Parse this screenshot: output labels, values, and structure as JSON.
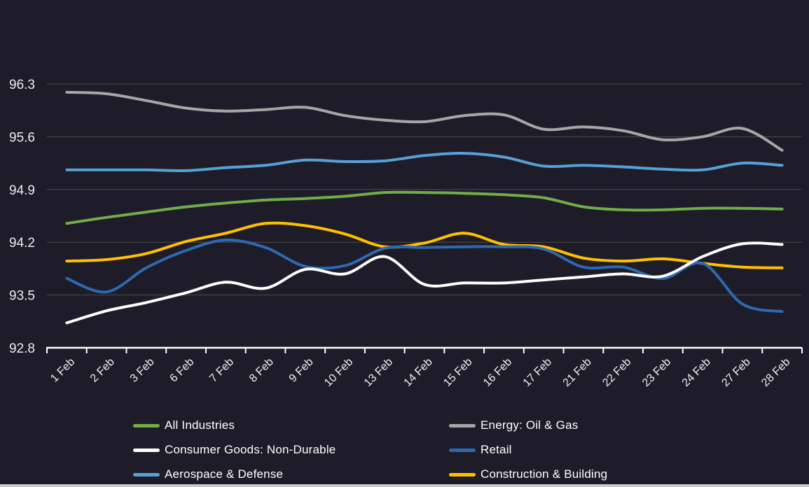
{
  "chart_data": {
    "type": "line",
    "title": "",
    "xlabel": "",
    "ylabel": "",
    "grid": true,
    "legend_position": "bottom",
    "ylim": [
      92.8,
      96.65
    ],
    "y_ticks": [
      "96.3",
      "95.6",
      "94.9",
      "94.2",
      "93.5",
      "92.8"
    ],
    "x": [
      "1 Feb",
      "2 Feb",
      "3 Feb",
      "6 Feb",
      "7 Feb",
      "8 Feb",
      "9 Feb",
      "10 Feb",
      "13 Feb",
      "14 Feb",
      "15 Feb",
      "16 Feb",
      "17 Feb",
      "21 Feb",
      "22 Feb",
      "23 Feb",
      "24 Feb",
      "27 Feb",
      "28 Feb"
    ],
    "series": [
      {
        "name": "All Industries",
        "color": "#70ad47",
        "values": [
          94.45,
          94.53,
          94.6,
          94.67,
          94.72,
          94.76,
          94.78,
          94.81,
          94.86,
          94.86,
          94.85,
          94.83,
          94.79,
          94.67,
          94.63,
          94.63,
          94.65,
          94.65,
          94.64
        ]
      },
      {
        "name": "Energy: Oil & Gas",
        "color": "#a6a6a6",
        "values": [
          96.19,
          96.17,
          96.08,
          95.98,
          95.94,
          95.96,
          95.99,
          95.88,
          95.82,
          95.8,
          95.88,
          95.89,
          95.7,
          95.73,
          95.68,
          95.56,
          95.6,
          95.71,
          95.42
        ]
      },
      {
        "name": "Consumer Goods: Non-Durable",
        "color": "#ffffff",
        "values": [
          93.13,
          93.29,
          93.4,
          93.53,
          93.67,
          93.59,
          93.84,
          93.78,
          94.01,
          93.64,
          93.66,
          93.66,
          93.7,
          93.74,
          93.78,
          93.75,
          94.01,
          94.18,
          94.17
        ]
      },
      {
        "name": "Retail",
        "color": "#2e68b0",
        "values": [
          93.72,
          93.54,
          93.86,
          94.09,
          94.23,
          94.13,
          93.88,
          93.89,
          94.12,
          94.13,
          94.14,
          94.14,
          94.11,
          93.87,
          93.87,
          93.72,
          93.92,
          93.38,
          93.28
        ]
      },
      {
        "name": "Aerospace & Defense",
        "color": "#57a0d7",
        "values": [
          95.16,
          95.16,
          95.16,
          95.15,
          95.19,
          95.22,
          95.29,
          95.27,
          95.28,
          95.35,
          95.38,
          95.33,
          95.21,
          95.22,
          95.2,
          95.17,
          95.16,
          95.25,
          95.22
        ]
      },
      {
        "name": "Construction & Building",
        "color": "#ffc000",
        "values": [
          93.95,
          93.97,
          94.05,
          94.21,
          94.32,
          94.45,
          94.42,
          94.31,
          94.14,
          94.19,
          94.32,
          94.17,
          94.14,
          93.99,
          93.95,
          93.98,
          93.92,
          93.87,
          93.86
        ]
      }
    ]
  },
  "colors": {
    "background": "#1e1c28",
    "gridline": "#4f4d46",
    "axis_line": "#ffffff",
    "y_label": "#ececec",
    "x_label": "#f0f0f0",
    "legend_text": "#ffffff",
    "bottom_strip": "#c9c9c9"
  }
}
